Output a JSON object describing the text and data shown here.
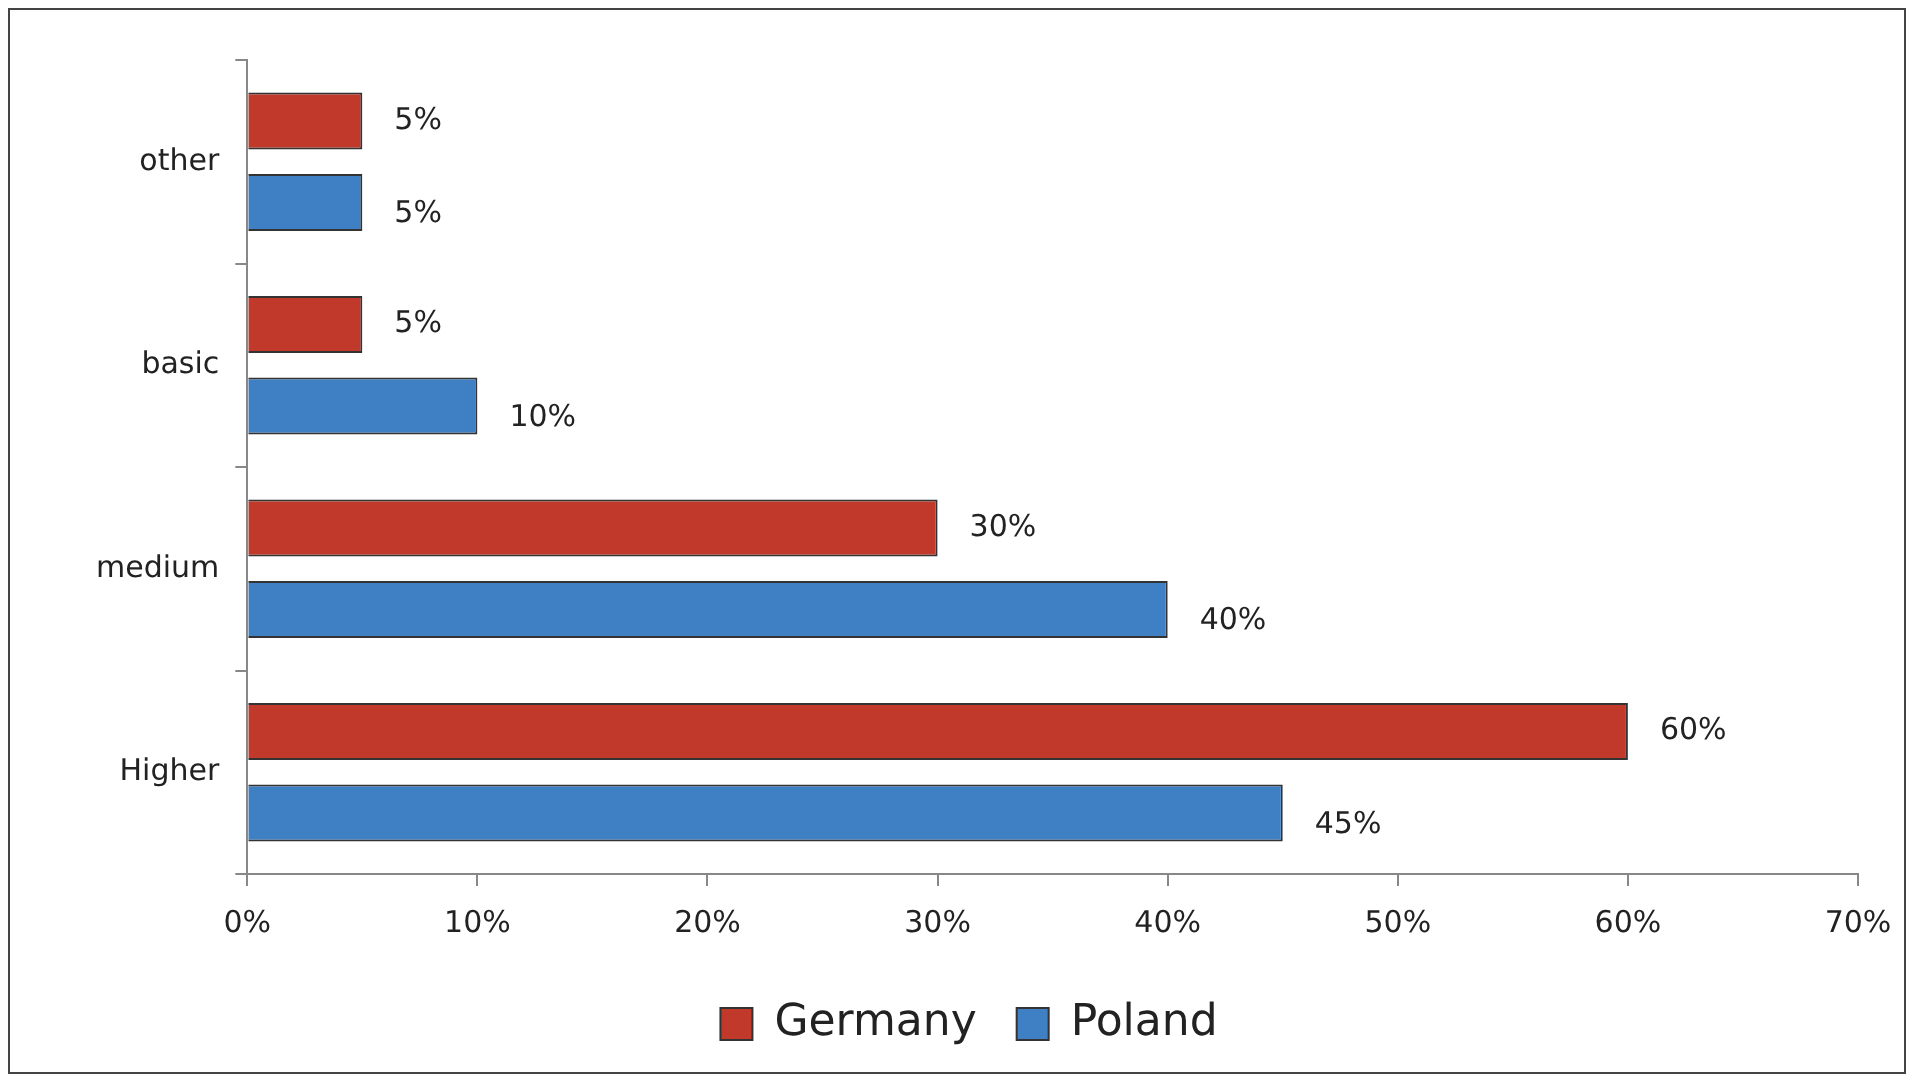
{
  "chart_data": {
    "type": "bar",
    "orientation": "horizontal",
    "categories": [
      "other",
      "basic",
      "medium",
      "Higher"
    ],
    "series": [
      {
        "name": "Germany",
        "color": "#c0392b",
        "values": [
          5,
          5,
          30,
          60
        ],
        "value_labels": [
          "5%",
          "5%",
          "30%",
          "60%"
        ]
      },
      {
        "name": "Poland",
        "color": "#3f7fc4",
        "values": [
          5,
          10,
          40,
          45
        ],
        "value_labels": [
          "5%",
          "10%",
          "40%",
          "45%"
        ]
      }
    ],
    "xlim": [
      0,
      70
    ],
    "xticks": [
      {
        "value": 0,
        "label": "0%"
      },
      {
        "value": 10,
        "label": "10%"
      },
      {
        "value": 20,
        "label": "20%"
      },
      {
        "value": 30,
        "label": "30%"
      },
      {
        "value": 40,
        "label": "40%"
      },
      {
        "value": 50,
        "label": "50%"
      },
      {
        "value": 60,
        "label": "60%"
      },
      {
        "value": 70,
        "label": "70%"
      }
    ],
    "grid": false,
    "legend": "bottom"
  }
}
